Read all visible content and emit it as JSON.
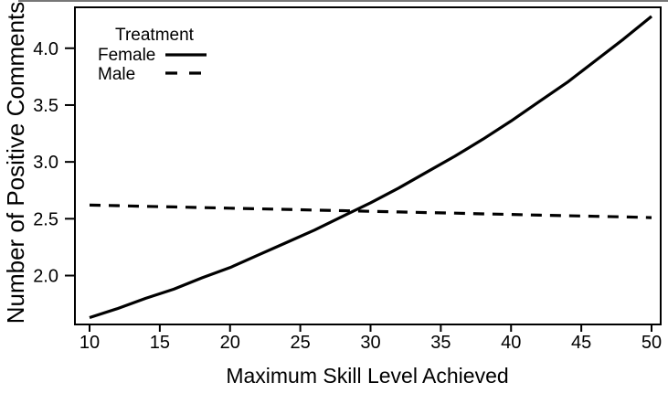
{
  "figure": {
    "background": "#ffffff",
    "ink_color": "#000000"
  },
  "chart_data": {
    "type": "line",
    "title": "",
    "xlabel": "Maximum Skill Level Achieved",
    "ylabel": "Number of Positive Comments",
    "xlim": [
      8.96,
      50.65
    ],
    "ylim": [
      1.57,
      4.36
    ],
    "grid": false,
    "x_ticks": [
      10,
      15,
      20,
      25,
      30,
      35,
      40,
      45,
      50
    ],
    "y_ticks": [
      {
        "value": 2.0,
        "label": "2.0"
      },
      {
        "value": 2.5,
        "label": "2.5"
      },
      {
        "value": 3.0,
        "label": "3.0"
      },
      {
        "value": 3.5,
        "label": "3.5"
      },
      {
        "value": 4.0,
        "label": "4.0"
      }
    ],
    "legend": {
      "title": "Treatment",
      "position": "top-left-inside",
      "entries": [
        {
          "label": "Female",
          "style": "solid"
        },
        {
          "label": "Male",
          "style": "dashed"
        }
      ]
    },
    "x": [
      10,
      12,
      14,
      16,
      18,
      20,
      22,
      24,
      26,
      28,
      30,
      32,
      34,
      36,
      38,
      40,
      42,
      44,
      46,
      48,
      50
    ],
    "series": [
      {
        "name": "Female",
        "style": "solid",
        "values": [
          1.63,
          1.71,
          1.8,
          1.88,
          1.98,
          2.07,
          2.18,
          2.29,
          2.4,
          2.52,
          2.64,
          2.77,
          2.91,
          3.05,
          3.2,
          3.36,
          3.53,
          3.7,
          3.89,
          4.08,
          4.28
        ]
      },
      {
        "name": "Male",
        "style": "dashed",
        "values": [
          2.62,
          2.615,
          2.609,
          2.604,
          2.598,
          2.593,
          2.587,
          2.582,
          2.576,
          2.571,
          2.565,
          2.56,
          2.554,
          2.549,
          2.543,
          2.538,
          2.532,
          2.527,
          2.521,
          2.516,
          2.51
        ]
      }
    ],
    "annotations": {
      "crossing_point": {
        "x": 29,
        "y": 2.57
      }
    }
  }
}
